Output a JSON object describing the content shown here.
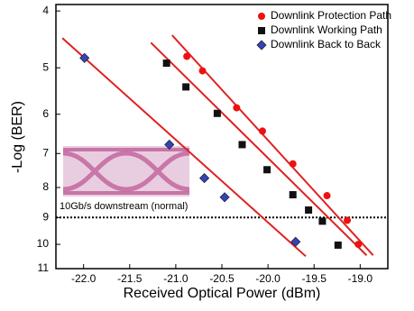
{
  "chart_data": {
    "type": "scatter",
    "x_label": "Received Optical Power (dBm)",
    "y_label": "-Log (BER)",
    "xlim": [
      -22.3,
      -18.7
    ],
    "xticks": [
      {
        "value": -22,
        "label": "-22.0"
      },
      {
        "value": -21.5,
        "label": "-21.5"
      },
      {
        "value": -21,
        "label": "-21.0"
      },
      {
        "value": -20.5,
        "label": "-20.5"
      },
      {
        "value": -20,
        "label": "-20.0"
      },
      {
        "value": -19.5,
        "label": "-19.5"
      },
      {
        "value": -19,
        "label": "-19.0"
      }
    ],
    "ylim": [
      3.9,
      11
    ],
    "yticks": [
      4,
      5,
      6,
      7,
      8,
      9,
      10,
      11
    ],
    "y_log_scale": true,
    "y_inverted": true,
    "threshold": 9,
    "legend_position": "upper-right",
    "inset_caption": "10Gb/s downstream (normal)",
    "series": [
      {
        "name": "Downlink Protection Path",
        "color": "#ee1111",
        "marker": "circle",
        "x": [
          -20.88,
          -20.71,
          -20.34,
          -20.06,
          -19.73,
          -19.36,
          -19.14,
          -19.02
        ],
        "values": [
          4.78,
          5.06,
          5.85,
          6.41,
          7.29,
          8.26,
          9.1,
          10.0
        ],
        "fit": {
          "x": [
            -21.04,
            -18.86
          ],
          "y": [
            4.4,
            10.44
          ]
        }
      },
      {
        "name": "Downlink Working Path",
        "color": "#111111",
        "marker": "square",
        "x": [
          -21.1,
          -20.89,
          -20.55,
          -20.28,
          -20.01,
          -19.73,
          -19.56,
          -19.41,
          -19.24
        ],
        "values": [
          4.91,
          5.39,
          5.98,
          6.76,
          7.46,
          8.23,
          8.74,
          9.13,
          10.03
        ],
        "fit": {
          "x": [
            -21.27,
            -18.93
          ],
          "y": [
            4.53,
            10.44
          ]
        }
      },
      {
        "name": "Downlink Back to Back",
        "color": "#3344bb",
        "marker": "diamond",
        "x": [
          -21.99,
          -21.07,
          -20.69,
          -20.47,
          -19.7
        ],
        "values": [
          4.81,
          6.76,
          7.71,
          8.31,
          9.9
        ],
        "fit": {
          "x": [
            -22.23,
            -19.59
          ],
          "y": [
            4.45,
            10.48
          ]
        }
      }
    ]
  }
}
